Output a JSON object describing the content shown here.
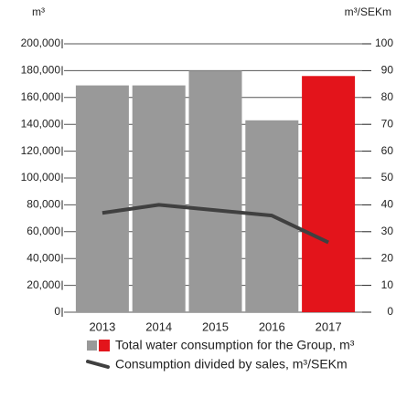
{
  "chart_data": {
    "type": "bar_line",
    "y_label": "m³",
    "y2_label": "m³/SEKm",
    "categories": [
      "2013",
      "2014",
      "2015",
      "2016",
      "2017"
    ],
    "series": [
      {
        "name": "Total water consumption for the Group, m³",
        "type": "bar",
        "color": "#999999",
        "colors": [
          "#999999",
          "#999999",
          "#999999",
          "#999999",
          "#e3141b"
        ],
        "values": [
          169000,
          169000,
          180000,
          143000,
          176000
        ]
      },
      {
        "name": "Consumption divided by sales, m³/SEKm",
        "type": "line",
        "axis": "y2",
        "color": "#404040",
        "values": [
          37,
          40,
          38,
          36,
          26
        ]
      }
    ],
    "ylim": [
      0,
      200000
    ],
    "yticks": [
      0,
      {
        "value": 20000,
        "label": "20,000"
      },
      {
        "value": 40000,
        "label": "40,000"
      },
      {
        "value": 60000,
        "label": "60,000"
      },
      {
        "value": 80000,
        "label": "80,000"
      },
      {
        "value": 100000,
        "label": "100,000"
      },
      {
        "value": 120000,
        "label": "120,000"
      },
      {
        "value": 140000,
        "label": "140,000"
      },
      {
        "value": 160000,
        "label": "160,000"
      },
      {
        "value": 180000,
        "label": "180,000"
      },
      {
        "value": 200000,
        "label": "200,000"
      }
    ],
    "y2lim": [
      0,
      100
    ],
    "y2ticks": [
      0,
      10,
      20,
      30,
      40,
      50,
      60,
      70,
      80,
      90,
      100
    ],
    "grid": true
  }
}
